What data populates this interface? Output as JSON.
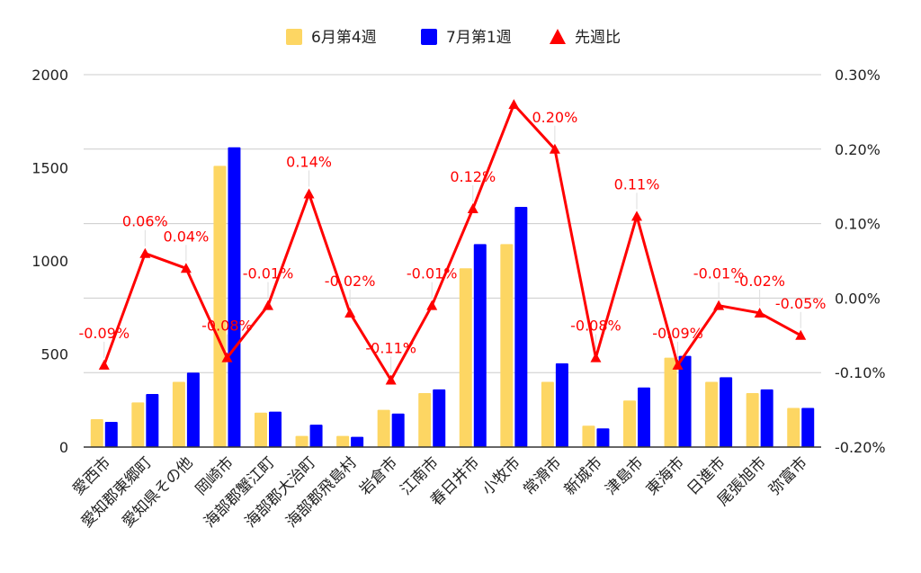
{
  "chart_data": {
    "type": "bar",
    "title": "",
    "categories": [
      "愛西市",
      "愛知郡東郷町",
      "愛知県その他",
      "岡崎市",
      "海部郡蟹江町",
      "海部郡大治町",
      "海部郡飛島村",
      "岩倉市",
      "江南市",
      "春日井市",
      "小牧市",
      "常滑市",
      "新城市",
      "津島市",
      "東海市",
      "日進市",
      "尾張旭市",
      "弥富市"
    ],
    "series": [
      {
        "name": "6月第4週",
        "type": "bar",
        "axis": "left",
        "color": "#fdd663",
        "values": [
          150,
          240,
          350,
          1510,
          185,
          60,
          60,
          200,
          290,
          960,
          1090,
          350,
          115,
          250,
          480,
          350,
          290,
          210
        ]
      },
      {
        "name": "7月第1週",
        "type": "bar",
        "axis": "left",
        "color": "#0000ff",
        "values": [
          135,
          285,
          400,
          1610,
          190,
          120,
          55,
          180,
          310,
          1090,
          1290,
          450,
          100,
          320,
          490,
          375,
          310,
          210
        ]
      },
      {
        "name": "先週比",
        "type": "line",
        "axis": "right",
        "color": "#ff0000",
        "marker": "triangle",
        "values": [
          -0.09,
          0.06,
          0.04,
          -0.08,
          -0.01,
          0.14,
          -0.02,
          -0.11,
          -0.01,
          0.12,
          0.26,
          0.2,
          -0.08,
          0.11,
          -0.09,
          -0.01,
          -0.02,
          -0.05
        ],
        "labels": [
          "-0.09%",
          "0.06%",
          "0.04%",
          "-0.08%",
          "-0.01%",
          "0.14%",
          "-0.02%",
          "-0.11%",
          "-0.01%",
          "0.12%",
          "",
          "0.20%",
          "-0.08%",
          "0.11%",
          "-0.09%",
          "-0.01%",
          "-0.02%",
          "-0.05%"
        ]
      }
    ],
    "left_axis": {
      "min": 0,
      "max": 2000,
      "ticks": [
        "0",
        "500",
        "1000",
        "1500",
        "2000"
      ]
    },
    "right_axis": {
      "min": -0.2,
      "max": 0.3,
      "ticks": [
        "-0.20%",
        "-0.10%",
        "0.00%",
        "0.10%",
        "0.20%",
        "0.30%"
      ]
    },
    "grid": true,
    "legend_position": "top"
  }
}
